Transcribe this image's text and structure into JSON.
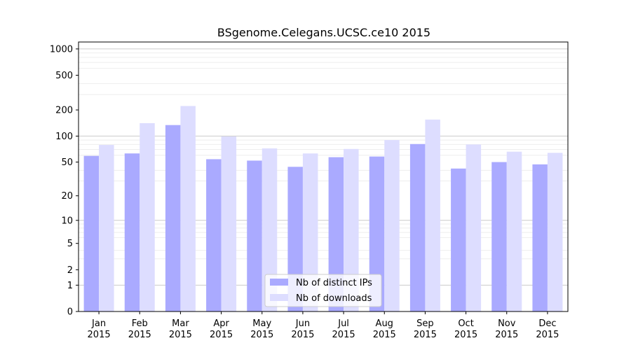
{
  "chart_data": {
    "type": "bar",
    "title": "BSgenome.Celegans.UCSC.ce10 2015",
    "xlabel": "",
    "ylabel": "",
    "yscale": "log(1+y)",
    "ylim": [
      0,
      1200
    ],
    "yticks": [
      0,
      1,
      2,
      5,
      10,
      20,
      50,
      100,
      200,
      500,
      1000
    ],
    "grid": true,
    "legend_position": "bottom-center",
    "categories": [
      "Jan\n2015",
      "Feb\n2015",
      "Mar\n2015",
      "Apr\n2015",
      "May\n2015",
      "Jun\n2015",
      "Jul\n2015",
      "Aug\n2015",
      "Sep\n2015",
      "Oct\n2015",
      "Nov\n2015",
      "Dec\n2015"
    ],
    "series": [
      {
        "name": "Nb of distinct IPs",
        "color": "#aaaaff",
        "values": [
          59,
          63,
          134,
          54,
          52,
          44,
          57,
          58,
          81,
          42,
          50,
          47
        ]
      },
      {
        "name": "Nb of downloads",
        "color": "#ddddff",
        "values": [
          79,
          141,
          222,
          99,
          72,
          63,
          71,
          90,
          155,
          80,
          66,
          64
        ]
      }
    ]
  }
}
